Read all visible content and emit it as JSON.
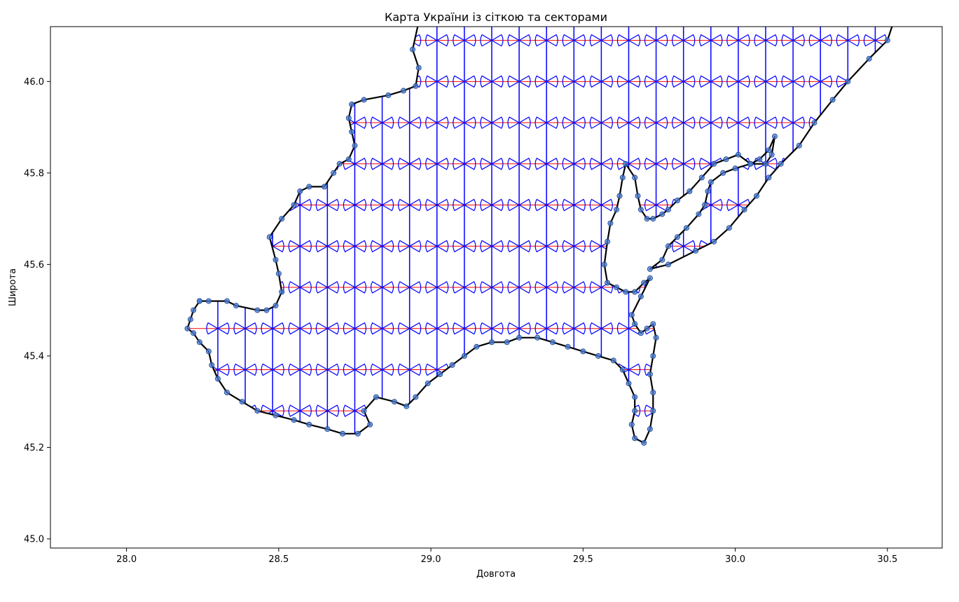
{
  "chart_data": {
    "type": "scatter",
    "title": "Карта України із сіткою та секторами",
    "xlabel": "Довгота",
    "ylabel": "Широта",
    "xlim": [
      27.75,
      30.68
    ],
    "ylim": [
      44.98,
      46.12
    ],
    "xticks": [
      28.0,
      28.5,
      29.0,
      29.5,
      30.0,
      30.5
    ],
    "xtick_labels": [
      "28.0",
      "28.5",
      "29.0",
      "29.5",
      "30.0",
      "30.5"
    ],
    "yticks": [
      45.0,
      45.2,
      45.4,
      45.6,
      45.8,
      46.0
    ],
    "ytick_labels": [
      "45.0",
      "45.2",
      "45.4",
      "45.6",
      "45.8",
      "46.0"
    ],
    "grid": false,
    "colors": {
      "boundary": "#000000",
      "boundary_points": "#4a7fd6",
      "grid_horizontal": "#ff0000",
      "grid_vertical": "#0000ff",
      "sectors": "#0000ff"
    },
    "grid_lines": {
      "vertical_x": [
        28.3,
        28.39,
        28.48,
        28.57,
        28.66,
        28.75,
        28.84,
        28.93,
        29.02,
        29.11,
        29.2,
        29.29,
        29.38,
        29.47,
        29.56,
        29.65,
        29.74,
        29.83,
        29.92,
        30.01,
        30.1,
        30.19,
        30.28,
        30.37,
        30.46
      ],
      "horizontal_y": [
        45.28,
        45.37,
        45.46,
        45.55,
        45.64,
        45.73,
        45.82,
        45.91,
        46.0,
        46.09
      ]
    },
    "boundary": [
      [
        28.24,
        45.52
      ],
      [
        28.27,
        45.52
      ],
      [
        28.33,
        45.52
      ],
      [
        28.36,
        45.51
      ],
      [
        28.43,
        45.5
      ],
      [
        28.46,
        45.5
      ],
      [
        28.49,
        45.51
      ],
      [
        28.51,
        45.54
      ],
      [
        28.5,
        45.58
      ],
      [
        28.49,
        45.61
      ],
      [
        28.47,
        45.66
      ],
      [
        28.51,
        45.7
      ],
      [
        28.55,
        45.73
      ],
      [
        28.57,
        45.76
      ],
      [
        28.6,
        45.77
      ],
      [
        28.65,
        45.77
      ],
      [
        28.68,
        45.8
      ],
      [
        28.7,
        45.82
      ],
      [
        28.73,
        45.83
      ],
      [
        28.75,
        45.86
      ],
      [
        28.74,
        45.89
      ],
      [
        28.73,
        45.92
      ],
      [
        28.74,
        45.95
      ],
      [
        28.78,
        45.96
      ],
      [
        28.86,
        45.97
      ],
      [
        28.91,
        45.98
      ],
      [
        28.95,
        45.99
      ],
      [
        28.96,
        46.03
      ],
      [
        28.94,
        46.07
      ],
      [
        28.96,
        46.13
      ],
      [
        29.3,
        46.13
      ],
      [
        29.8,
        46.13
      ],
      [
        30.15,
        46.13
      ],
      [
        30.52,
        46.13
      ],
      [
        30.5,
        46.09
      ],
      [
        30.44,
        46.05
      ],
      [
        30.37,
        46.0
      ],
      [
        30.32,
        45.96
      ],
      [
        30.26,
        45.91
      ],
      [
        30.21,
        45.86
      ],
      [
        30.15,
        45.82
      ],
      [
        30.11,
        45.79
      ],
      [
        30.07,
        45.75
      ],
      [
        30.03,
        45.72
      ],
      [
        29.98,
        45.68
      ],
      [
        29.93,
        45.65
      ],
      [
        29.87,
        45.63
      ],
      [
        29.78,
        45.6
      ],
      [
        29.72,
        45.59
      ],
      [
        29.76,
        45.61
      ],
      [
        29.78,
        45.64
      ],
      [
        29.81,
        45.66
      ],
      [
        29.84,
        45.68
      ],
      [
        29.88,
        45.71
      ],
      [
        29.9,
        45.73
      ],
      [
        29.91,
        45.76
      ],
      [
        29.92,
        45.78
      ],
      [
        29.96,
        45.8
      ],
      [
        30.0,
        45.81
      ],
      [
        30.05,
        45.82
      ],
      [
        30.08,
        45.83
      ],
      [
        30.11,
        45.85
      ],
      [
        30.13,
        45.88
      ],
      [
        30.12,
        45.84
      ],
      [
        30.1,
        45.82
      ],
      [
        30.05,
        45.82
      ],
      [
        30.01,
        45.84
      ],
      [
        29.97,
        45.83
      ],
      [
        29.93,
        45.82
      ],
      [
        29.89,
        45.79
      ],
      [
        29.85,
        45.76
      ],
      [
        29.81,
        45.74
      ],
      [
        29.78,
        45.72
      ],
      [
        29.76,
        45.71
      ],
      [
        29.73,
        45.7
      ],
      [
        29.71,
        45.7
      ],
      [
        29.69,
        45.72
      ],
      [
        29.68,
        45.75
      ],
      [
        29.67,
        45.79
      ],
      [
        29.64,
        45.82
      ],
      [
        29.63,
        45.79
      ],
      [
        29.62,
        45.75
      ],
      [
        29.61,
        45.72
      ],
      [
        29.59,
        45.69
      ],
      [
        29.58,
        45.65
      ],
      [
        29.57,
        45.6
      ],
      [
        29.58,
        45.56
      ],
      [
        29.61,
        45.55
      ],
      [
        29.64,
        45.54
      ],
      [
        29.67,
        45.54
      ],
      [
        29.7,
        45.56
      ],
      [
        29.72,
        45.57
      ],
      [
        29.69,
        45.53
      ],
      [
        29.66,
        45.49
      ],
      [
        29.67,
        45.47
      ],
      [
        29.69,
        45.45
      ],
      [
        29.71,
        45.46
      ],
      [
        29.73,
        45.47
      ],
      [
        29.74,
        45.44
      ],
      [
        29.73,
        45.4
      ],
      [
        29.72,
        45.36
      ],
      [
        29.73,
        45.32
      ],
      [
        29.73,
        45.28
      ],
      [
        29.72,
        45.24
      ],
      [
        29.7,
        45.21
      ],
      [
        29.67,
        45.22
      ],
      [
        29.66,
        45.25
      ],
      [
        29.67,
        45.28
      ],
      [
        29.67,
        45.31
      ],
      [
        29.65,
        45.34
      ],
      [
        29.63,
        45.37
      ],
      [
        29.6,
        45.39
      ],
      [
        29.55,
        45.4
      ],
      [
        29.5,
        45.41
      ],
      [
        29.45,
        45.42
      ],
      [
        29.4,
        45.43
      ],
      [
        29.35,
        45.44
      ],
      [
        29.29,
        45.44
      ],
      [
        29.25,
        45.43
      ],
      [
        29.2,
        45.43
      ],
      [
        29.15,
        45.42
      ],
      [
        29.11,
        45.4
      ],
      [
        29.07,
        45.38
      ],
      [
        29.03,
        45.36
      ],
      [
        28.99,
        45.34
      ],
      [
        28.95,
        45.31
      ],
      [
        28.92,
        45.29
      ],
      [
        28.88,
        45.3
      ],
      [
        28.82,
        45.31
      ],
      [
        28.78,
        45.28
      ],
      [
        28.8,
        45.25
      ],
      [
        28.76,
        45.23
      ],
      [
        28.71,
        45.23
      ],
      [
        28.66,
        45.24
      ],
      [
        28.6,
        45.25
      ],
      [
        28.55,
        45.26
      ],
      [
        28.49,
        45.27
      ],
      [
        28.43,
        45.28
      ],
      [
        28.38,
        45.3
      ],
      [
        28.33,
        45.32
      ],
      [
        28.3,
        45.35
      ],
      [
        28.28,
        45.38
      ],
      [
        28.27,
        45.41
      ],
      [
        28.24,
        45.43
      ],
      [
        28.22,
        45.45
      ],
      [
        28.2,
        45.46
      ],
      [
        28.21,
        45.48
      ],
      [
        28.22,
        45.5
      ],
      [
        28.24,
        45.52
      ]
    ]
  }
}
